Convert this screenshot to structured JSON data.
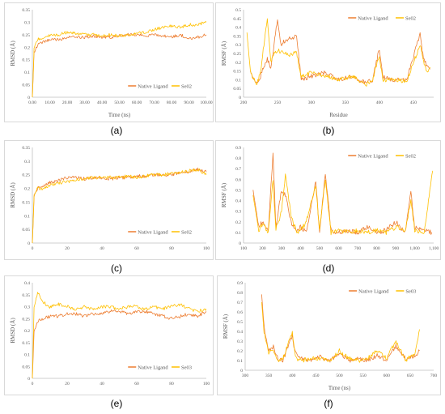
{
  "figure": {
    "panel_labels": [
      "(a)",
      "(b)",
      "(c)",
      "(d)",
      "(e)",
      "(f)"
    ]
  },
  "colors": {
    "native": "#ed7d31",
    "ligand": "#ffc000",
    "axis": "#bfbfbf",
    "text": "#595959"
  },
  "chart_data": [
    {
      "type": "line",
      "panel": "(a)",
      "xlabel": "Time (ns)",
      "ylabel": "RMSD (Å)",
      "xlim": [
        0,
        100
      ],
      "ylim": [
        0,
        0.35
      ],
      "xticks": [
        0,
        10,
        20,
        30,
        40,
        50,
        60,
        70,
        80,
        90,
        100
      ],
      "xtick_labels": [
        "0.00",
        "10.00",
        "20.00",
        "30.00",
        "40.00",
        "50.00",
        "60.00",
        "70.00",
        "80.00",
        "90.00",
        "100.00"
      ],
      "yticks": [
        0,
        0.05,
        0.1,
        0.15,
        0.2,
        0.25,
        0.3,
        0.35
      ],
      "ytick_labels": [
        "0",
        "0.05",
        "0.1",
        "0.15",
        "0.2",
        "0.25",
        "0.3",
        "0.35"
      ],
      "legend": "bottom-right",
      "series": [
        {
          "name": "Native Ligand",
          "color": "native",
          "x": [
            0,
            1,
            3,
            6,
            10,
            15,
            20,
            25,
            30,
            35,
            40,
            45,
            50,
            55,
            60,
            65,
            70,
            75,
            80,
            85,
            90,
            95,
            100
          ],
          "y": [
            0.0,
            0.18,
            0.21,
            0.22,
            0.23,
            0.23,
            0.24,
            0.24,
            0.24,
            0.245,
            0.24,
            0.24,
            0.245,
            0.25,
            0.25,
            0.245,
            0.25,
            0.245,
            0.24,
            0.25,
            0.235,
            0.24,
            0.25
          ]
        },
        {
          "name": "Se02",
          "color": "ligand",
          "x": [
            0,
            1,
            3,
            6,
            10,
            15,
            20,
            25,
            30,
            35,
            40,
            45,
            50,
            55,
            60,
            65,
            70,
            75,
            80,
            85,
            90,
            95,
            100
          ],
          "y": [
            0.0,
            0.2,
            0.23,
            0.24,
            0.25,
            0.25,
            0.26,
            0.255,
            0.25,
            0.25,
            0.245,
            0.25,
            0.245,
            0.25,
            0.255,
            0.26,
            0.27,
            0.28,
            0.285,
            0.28,
            0.29,
            0.29,
            0.3
          ]
        }
      ]
    },
    {
      "type": "line",
      "panel": "(b)",
      "xlabel": "Residue",
      "ylabel": "RMSF (Å)",
      "xlim": [
        200,
        480
      ],
      "ylim": [
        0,
        0.5
      ],
      "xticks": [
        200,
        250,
        300,
        350,
        400,
        450
      ],
      "xtick_labels": [
        "200",
        "250",
        "300",
        "350",
        "400",
        "450"
      ],
      "yticks": [
        0,
        0.05,
        0.1,
        0.15,
        0.2,
        0.25,
        0.3,
        0.35,
        0.4,
        0.45,
        0.5
      ],
      "ytick_labels": [
        "0",
        "0.05",
        "0.1",
        "0.15",
        "0.2",
        "0.25",
        "0.3",
        "0.35",
        "0.4",
        "0.45",
        "0.5"
      ],
      "legend": "top-right",
      "series": [
        {
          "name": "Native Ligand",
          "color": "native",
          "x": [
            210,
            215,
            220,
            225,
            230,
            235,
            240,
            245,
            250,
            255,
            260,
            270,
            278,
            285,
            300,
            320,
            340,
            360,
            380,
            390,
            400,
            405,
            420,
            440,
            460,
            465,
            470,
            475
          ],
          "y": [
            0.15,
            0.1,
            0.08,
            0.12,
            0.18,
            0.22,
            0.16,
            0.3,
            0.45,
            0.3,
            0.32,
            0.34,
            0.35,
            0.1,
            0.12,
            0.14,
            0.1,
            0.12,
            0.08,
            0.1,
            0.28,
            0.12,
            0.1,
            0.1,
            0.36,
            0.22,
            0.18,
            0.16
          ]
        },
        {
          "name": "Se02",
          "color": "ligand",
          "x": [
            205,
            210,
            215,
            220,
            225,
            230,
            235,
            240,
            245,
            250,
            255,
            260,
            270,
            278,
            285,
            300,
            320,
            340,
            360,
            380,
            390,
            400,
            405,
            420,
            440,
            460,
            465,
            470,
            475
          ],
          "y": [
            0.37,
            0.15,
            0.1,
            0.08,
            0.14,
            0.3,
            0.45,
            0.2,
            0.25,
            0.27,
            0.26,
            0.25,
            0.24,
            0.26,
            0.12,
            0.14,
            0.12,
            0.1,
            0.12,
            0.07,
            0.1,
            0.24,
            0.1,
            0.1,
            0.09,
            0.3,
            0.2,
            0.15,
            0.17
          ]
        }
      ]
    },
    {
      "type": "line",
      "panel": "(c)",
      "xlabel": "",
      "ylabel": "RMSD (Å)",
      "xlim": [
        0,
        100
      ],
      "ylim": [
        0,
        0.35
      ],
      "xticks": [
        0,
        20,
        40,
        60,
        80,
        100
      ],
      "xtick_labels": [
        "0",
        "20",
        "40",
        "60",
        "80",
        "100"
      ],
      "yticks": [
        0,
        0.05,
        0.1,
        0.15,
        0.2,
        0.25,
        0.3,
        0.35
      ],
      "ytick_labels": [
        "0",
        "0.05",
        "0.1",
        "0.15",
        "0.2",
        "0.25",
        "0.3",
        "0.35"
      ],
      "legend": "bottom-right",
      "series": [
        {
          "name": "Native Ligand",
          "color": "native",
          "x": [
            0,
            1,
            3,
            6,
            10,
            15,
            20,
            25,
            30,
            35,
            40,
            45,
            50,
            55,
            60,
            65,
            70,
            75,
            80,
            85,
            90,
            95,
            100
          ],
          "y": [
            0.0,
            0.17,
            0.2,
            0.21,
            0.22,
            0.23,
            0.24,
            0.24,
            0.235,
            0.24,
            0.24,
            0.235,
            0.24,
            0.24,
            0.245,
            0.245,
            0.25,
            0.25,
            0.25,
            0.26,
            0.26,
            0.27,
            0.26
          ]
        },
        {
          "name": "Se02",
          "color": "ligand",
          "x": [
            0,
            1,
            3,
            6,
            10,
            15,
            20,
            25,
            30,
            35,
            40,
            45,
            50,
            55,
            60,
            65,
            70,
            75,
            80,
            85,
            90,
            95,
            100
          ],
          "y": [
            0.0,
            0.18,
            0.2,
            0.2,
            0.21,
            0.22,
            0.225,
            0.23,
            0.235,
            0.24,
            0.24,
            0.24,
            0.24,
            0.245,
            0.24,
            0.245,
            0.25,
            0.25,
            0.255,
            0.26,
            0.265,
            0.27,
            0.25
          ]
        }
      ]
    },
    {
      "type": "line",
      "panel": "(d)",
      "xlabel": "",
      "ylabel": "RMSF (Å)",
      "xlim": [
        100,
        1100
      ],
      "ylim": [
        0,
        0.9
      ],
      "xticks": [
        100,
        200,
        300,
        400,
        500,
        600,
        700,
        800,
        900,
        1000,
        1100
      ],
      "xtick_labels": [
        "100",
        "200",
        "300",
        "400",
        "500",
        "600",
        "700",
        "800",
        "900",
        "1,000",
        "1,100"
      ],
      "yticks": [
        0,
        0.1,
        0.2,
        0.3,
        0.4,
        0.5,
        0.6,
        0.7,
        0.8,
        0.9
      ],
      "ytick_labels": [
        "0",
        "0.1",
        "0.2",
        "0.3",
        "0.4",
        "0.5",
        "0.6",
        "0.7",
        "0.8",
        "0.9"
      ],
      "legend": "top-right",
      "series": [
        {
          "name": "Native Ligand",
          "color": "native",
          "x": [
            150,
            180,
            200,
            230,
            255,
            270,
            300,
            320,
            350,
            380,
            400,
            430,
            480,
            500,
            530,
            560,
            600,
            650,
            700,
            750,
            800,
            850,
            900,
            950,
            980,
            1000,
            1050,
            1090
          ],
          "y": [
            0.5,
            0.15,
            0.2,
            0.12,
            0.85,
            0.15,
            0.5,
            0.45,
            0.2,
            0.1,
            0.15,
            0.1,
            0.58,
            0.1,
            0.65,
            0.12,
            0.1,
            0.12,
            0.1,
            0.15,
            0.1,
            0.12,
            0.2,
            0.1,
            0.48,
            0.15,
            0.12,
            0.1
          ]
        },
        {
          "name": "Se02",
          "color": "ligand",
          "x": [
            150,
            180,
            200,
            230,
            255,
            270,
            300,
            320,
            350,
            380,
            400,
            430,
            480,
            500,
            530,
            560,
            600,
            650,
            700,
            750,
            800,
            850,
            900,
            950,
            980,
            1000,
            1050,
            1095
          ],
          "y": [
            0.45,
            0.12,
            0.18,
            0.1,
            0.6,
            0.12,
            0.3,
            0.65,
            0.25,
            0.1,
            0.12,
            0.2,
            0.55,
            0.12,
            0.6,
            0.1,
            0.12,
            0.1,
            0.12,
            0.1,
            0.12,
            0.1,
            0.15,
            0.12,
            0.4,
            0.12,
            0.1,
            0.68
          ]
        }
      ]
    },
    {
      "type": "line",
      "panel": "(e)",
      "xlabel": "",
      "ylabel": "RMSD (Å)",
      "xlim": [
        0,
        100
      ],
      "ylim": [
        0,
        0.4
      ],
      "xticks": [
        0,
        20,
        40,
        60,
        80,
        100
      ],
      "xtick_labels": [
        "0",
        "20",
        "40",
        "60",
        "80",
        "100"
      ],
      "yticks": [
        0,
        0.05,
        0.1,
        0.15,
        0.2,
        0.25,
        0.3,
        0.35,
        0.4
      ],
      "ytick_labels": [
        "0",
        "0.05",
        "0.1",
        "0.15",
        "0.2",
        "0.25",
        "0.3",
        "0.35",
        "0.4"
      ],
      "legend": "bottom-right",
      "series": [
        {
          "name": "Native Ligand",
          "color": "native",
          "x": [
            0,
            1,
            3,
            6,
            10,
            15,
            20,
            25,
            30,
            35,
            40,
            45,
            50,
            55,
            60,
            65,
            70,
            75,
            80,
            85,
            90,
            95,
            100
          ],
          "y": [
            0.0,
            0.2,
            0.24,
            0.25,
            0.26,
            0.26,
            0.27,
            0.27,
            0.26,
            0.27,
            0.27,
            0.28,
            0.28,
            0.27,
            0.28,
            0.28,
            0.27,
            0.26,
            0.25,
            0.26,
            0.27,
            0.26,
            0.28
          ]
        },
        {
          "name": "Se03",
          "color": "ligand",
          "x": [
            0,
            1,
            3,
            6,
            10,
            15,
            20,
            25,
            30,
            35,
            40,
            45,
            50,
            55,
            60,
            65,
            70,
            75,
            80,
            85,
            90,
            95,
            100
          ],
          "y": [
            0.0,
            0.3,
            0.36,
            0.32,
            0.3,
            0.31,
            0.3,
            0.29,
            0.3,
            0.29,
            0.3,
            0.3,
            0.29,
            0.3,
            0.3,
            0.29,
            0.3,
            0.29,
            0.3,
            0.31,
            0.29,
            0.28,
            0.29
          ]
        }
      ]
    },
    {
      "type": "line",
      "panel": "(f)",
      "xlabel": "Time (ns)",
      "ylabel": "RMSF (Å)",
      "xlim": [
        300,
        700
      ],
      "ylim": [
        0,
        0.9
      ],
      "xticks": [
        300,
        350,
        400,
        450,
        500,
        550,
        600,
        650,
        700
      ],
      "xtick_labels": [
        "300",
        "350",
        "400",
        "450",
        "500",
        "550",
        "600",
        "650",
        "700"
      ],
      "yticks": [
        0,
        0.1,
        0.2,
        0.3,
        0.4,
        0.5,
        0.6,
        0.7,
        0.8,
        0.9
      ],
      "ytick_labels": [
        "0",
        "0.1",
        "0.2",
        "0.3",
        "0.4",
        "0.5",
        "0.6",
        "0.7",
        "0.8",
        "0.9"
      ],
      "legend": "top-right",
      "series": [
        {
          "name": "Native Ligand",
          "color": "native",
          "x": [
            335,
            340,
            345,
            350,
            355,
            360,
            370,
            380,
            400,
            405,
            410,
            420,
            440,
            460,
            480,
            500,
            520,
            540,
            560,
            580,
            600,
            620,
            640,
            660,
            670
          ],
          "y": [
            0.78,
            0.45,
            0.3,
            0.2,
            0.22,
            0.24,
            0.12,
            0.1,
            0.35,
            0.2,
            0.15,
            0.12,
            0.1,
            0.14,
            0.1,
            0.18,
            0.1,
            0.12,
            0.1,
            0.15,
            0.1,
            0.25,
            0.12,
            0.15,
            0.2
          ]
        },
        {
          "name": "Se03",
          "color": "ligand",
          "x": [
            335,
            340,
            345,
            350,
            355,
            360,
            370,
            380,
            400,
            405,
            410,
            420,
            440,
            460,
            480,
            500,
            520,
            540,
            560,
            580,
            600,
            620,
            640,
            660,
            670
          ],
          "y": [
            0.7,
            0.4,
            0.28,
            0.18,
            0.2,
            0.2,
            0.1,
            0.12,
            0.38,
            0.18,
            0.12,
            0.1,
            0.12,
            0.12,
            0.1,
            0.2,
            0.12,
            0.1,
            0.12,
            0.2,
            0.12,
            0.3,
            0.1,
            0.18,
            0.42
          ]
        }
      ]
    }
  ]
}
